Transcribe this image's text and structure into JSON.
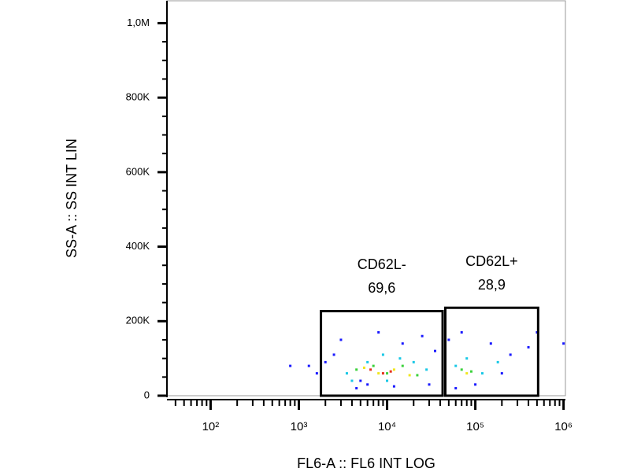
{
  "chart_data": {
    "type": "scatter",
    "x_label": "FL6-A :: FL6 INT LOG",
    "y_label": "SS-A :: SS INT LIN",
    "xscale": "log",
    "xlim": [
      32,
      1050000
    ],
    "ylim": [
      0,
      1060000
    ],
    "xticks": [
      {
        "value": 100,
        "label": "10²"
      },
      {
        "value": 1000,
        "label": "10³"
      },
      {
        "value": 10000,
        "label": "10⁴"
      },
      {
        "value": 100000,
        "label": "10⁵"
      },
      {
        "value": 1000000,
        "label": "10⁶"
      }
    ],
    "xminorticks": [
      40,
      50,
      60,
      70,
      80,
      90,
      200,
      300,
      400,
      500,
      600,
      700,
      800,
      900,
      2000,
      3000,
      4000,
      5000,
      6000,
      7000,
      8000,
      9000,
      20000,
      30000,
      40000,
      50000,
      60000,
      70000,
      80000,
      90000,
      200000,
      300000,
      400000,
      500000,
      600000,
      700000,
      800000,
      900000
    ],
    "yticks": [
      0,
      {
        "value": 200000,
        "label": "200K"
      },
      {
        "value": 400000,
        "label": "400K"
      },
      {
        "value": 600000,
        "label": "600K"
      },
      {
        "value": 800000,
        "label": "800K"
      },
      {
        "value": 1000000,
        "label": "1,0M"
      }
    ],
    "yminorticks": [
      50000,
      100000,
      150000,
      250000,
      300000,
      350000,
      450000,
      500000,
      550000,
      650000,
      700000,
      750000,
      850000,
      900000,
      950000
    ],
    "points": [
      {
        "color": "#1a1aff",
        "x": [
          800,
          1300,
          1600,
          2000,
          2500,
          3000,
          4500,
          5000,
          6000,
          8000,
          12000,
          15000,
          25000,
          30000,
          35000,
          50000,
          60000,
          70000,
          100000,
          150000,
          200000,
          250000,
          400000,
          500000,
          1000000
        ],
        "y": [
          80000,
          80000,
          60000,
          90000,
          110000,
          150000,
          20000,
          40000,
          30000,
          170000,
          25000,
          140000,
          160000,
          30000,
          120000,
          150000,
          20000,
          170000,
          30000,
          140000,
          60000,
          110000,
          130000,
          170000,
          140000
        ]
      },
      {
        "color": "#19c8e6",
        "x": [
          3500,
          4000,
          6000,
          9000,
          10000,
          14000,
          20000,
          28000,
          60000,
          80000,
          120000,
          180000
        ],
        "y": [
          60000,
          40000,
          90000,
          110000,
          40000,
          100000,
          90000,
          70000,
          80000,
          100000,
          60000,
          90000
        ]
      },
      {
        "color": "#3cd23c",
        "x": [
          4500,
          7000,
          10000,
          15000,
          22000,
          70000,
          90000
        ],
        "y": [
          70000,
          80000,
          60000,
          80000,
          55000,
          70000,
          65000
        ]
      },
      {
        "color": "#f0e61e",
        "x": [
          5500,
          8000,
          12000,
          18000,
          80000
        ],
        "y": [
          75000,
          60000,
          70000,
          55000,
          60000
        ]
      },
      {
        "color": "#e6321e",
        "x": [
          6500,
          9000,
          11000
        ],
        "y": [
          70000,
          60000,
          65000
        ]
      }
    ],
    "gates": [
      {
        "name": "CD62L-",
        "value": 69.6,
        "value_label": "69,6",
        "xlim": [
          1780,
          42600
        ],
        "ylim": [
          0,
          227000
        ]
      },
      {
        "name": "CD62L+",
        "value": 28.9,
        "value_label": "28,9",
        "xlim": [
          45700,
          515000
        ],
        "ylim": [
          0,
          236000
        ]
      }
    ]
  }
}
